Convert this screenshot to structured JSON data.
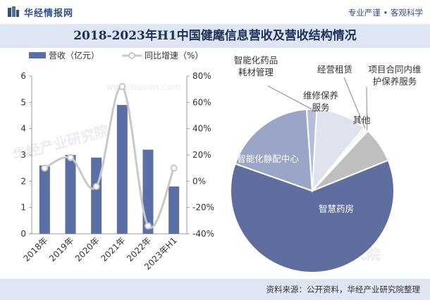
{
  "header": {
    "brand": "华经情报网",
    "slogan": "专业严谨 • 客观科学",
    "title": "2018-2023年H1中国健麾信息营收及营收结构情况"
  },
  "footer": {
    "source": "资料来源：公开资料，华经产业研究院整理"
  },
  "watermark": {
    "cn": "华经产业研究院",
    "url": "www.huaon.com"
  },
  "colors": {
    "bar": "#5a6fa3",
    "line": "#c8c8c8",
    "accent": "#2f4f8c",
    "title_band": "#dfe6f3"
  },
  "chart_data": [
    {
      "type": "bar",
      "categories": [
        "2018年",
        "2019年",
        "2020年",
        "2021年",
        "2022年",
        "2023年H1"
      ],
      "series": [
        {
          "name": "营收（亿元）",
          "type": "bar",
          "axis": "left",
          "values": [
            2.6,
            3.0,
            2.9,
            4.9,
            3.2,
            1.8
          ]
        },
        {
          "name": "同比增速（%）",
          "type": "line",
          "axis": "right",
          "values": [
            10,
            18,
            -4,
            72,
            -34,
            10
          ]
        }
      ],
      "y_left": {
        "ylim": [
          0,
          6
        ],
        "ticks": [
          "0",
          "1",
          "2",
          "3",
          "4",
          "5",
          "6"
        ]
      },
      "y_right": {
        "ylim": [
          -40,
          80
        ],
        "ticks": [
          "-40%",
          "-20%",
          "0%",
          "20%",
          "40%",
          "60%",
          "80%"
        ]
      },
      "legend": "top-left"
    },
    {
      "type": "pie",
      "slices": [
        {
          "label": "智慧药房",
          "value": 61.5,
          "color": "#5f6e9e"
        },
        {
          "label": "智能化静配中心",
          "value": 18.5,
          "color": "#9aa5c7"
        },
        {
          "label": "智能化药品耗材管理",
          "value": 2.0,
          "color": "#b5bdd8"
        },
        {
          "label": "维修保养服务",
          "value": 10.0,
          "color": "#dfe3ef"
        },
        {
          "label": "经营租赁",
          "value": 0.6,
          "color": "#eef0f6"
        },
        {
          "label": "项目合同内维护保养服务",
          "value": 0.4,
          "color": "#e4e4e4"
        },
        {
          "label": "其他",
          "value": 7.0,
          "color": "#bfbfbf"
        }
      ]
    }
  ]
}
